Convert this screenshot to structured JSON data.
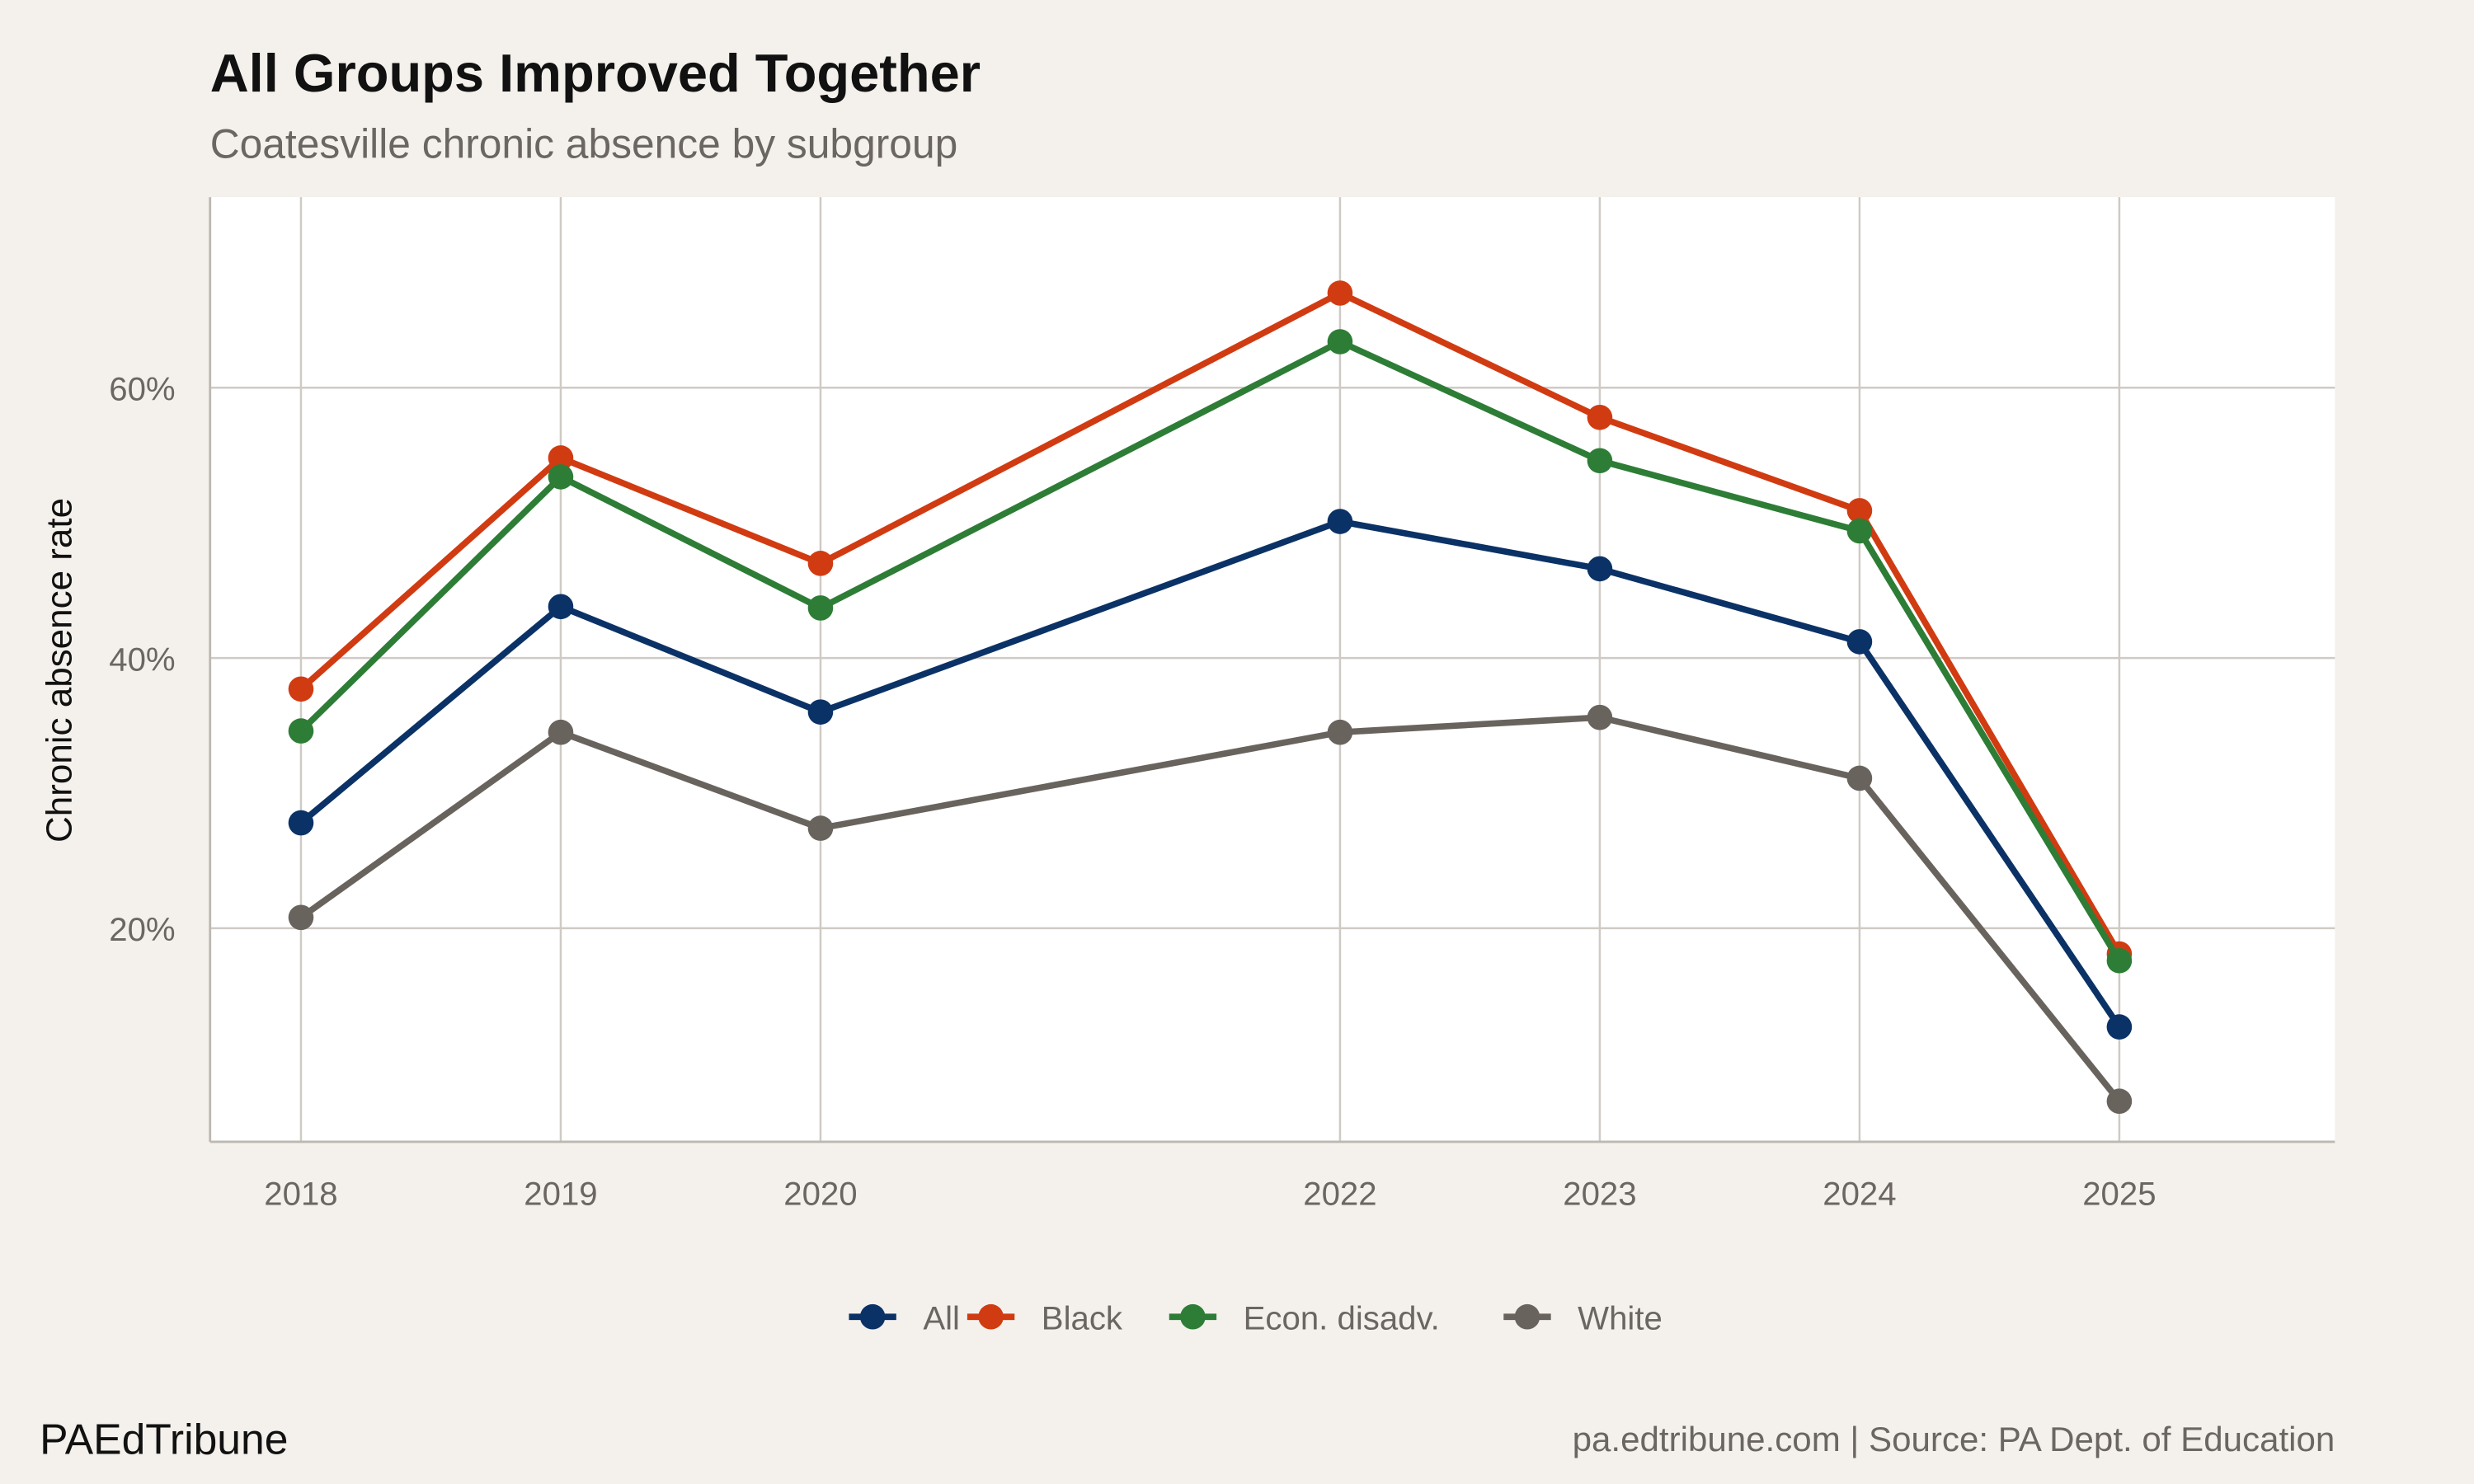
{
  "chart_data": {
    "type": "line",
    "title": "All Groups Improved Together",
    "subtitle": "Coatesville chronic absence by subgroup",
    "xlabel": "",
    "ylabel": "Chronic absence rate",
    "x": [
      2018,
      2019,
      2020,
      2022,
      2023,
      2024,
      2025
    ],
    "x_tick_labels": [
      "2018",
      "2019",
      "2020",
      "2022",
      "2023",
      "2024",
      "2025"
    ],
    "y_ticks": [
      20,
      40,
      60
    ],
    "y_tick_labels": [
      "20%",
      "40%",
      "60%"
    ],
    "xlim": [
      2017.65,
      2025.83
    ],
    "ylim": [
      4.2,
      74.1
    ],
    "grid": true,
    "legend_position": "bottom",
    "series": [
      {
        "name": "All",
        "color": "#0b3266",
        "values": [
          27.8,
          43.8,
          36.0,
          50.1,
          46.6,
          41.2,
          12.7
        ]
      },
      {
        "name": "Black",
        "color": "#d13b12",
        "values": [
          37.7,
          54.8,
          47.0,
          67.0,
          57.8,
          50.9,
          18.1
        ]
      },
      {
        "name": "Econ. disadv.",
        "color": "#2e7d36",
        "values": [
          34.6,
          53.4,
          43.7,
          63.4,
          54.6,
          49.4,
          17.6
        ]
      },
      {
        "name": "White",
        "color": "#69635e",
        "values": [
          20.8,
          34.5,
          27.4,
          34.5,
          35.6,
          31.1,
          7.2
        ]
      }
    ]
  },
  "footer": {
    "brand": "PAEdTribune",
    "source": "pa.edtribune.com | Source: PA Dept. of Education"
  }
}
